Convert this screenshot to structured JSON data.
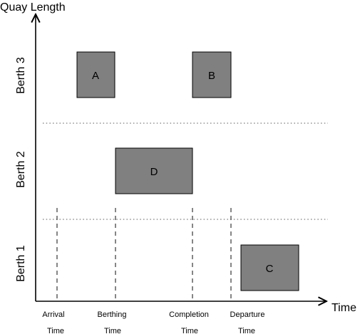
{
  "axes": {
    "y_title": "Quay Length",
    "x_title": "Time"
  },
  "berths": [
    "Berth 3",
    "Berth 2",
    "Berth 1"
  ],
  "time_markers": [
    {
      "line1": "Arrival",
      "line2": "Time"
    },
    {
      "line1": "Berthing",
      "line2": "Time"
    },
    {
      "line1": "Completion",
      "line2": "Time"
    },
    {
      "line1": "Departure",
      "line2": "Time"
    }
  ],
  "ships": [
    {
      "label": "A"
    },
    {
      "label": "B"
    },
    {
      "label": "D"
    },
    {
      "label": "C"
    }
  ],
  "colors": {
    "ship_fill": "#808080",
    "divider": "#7a7a7a"
  }
}
